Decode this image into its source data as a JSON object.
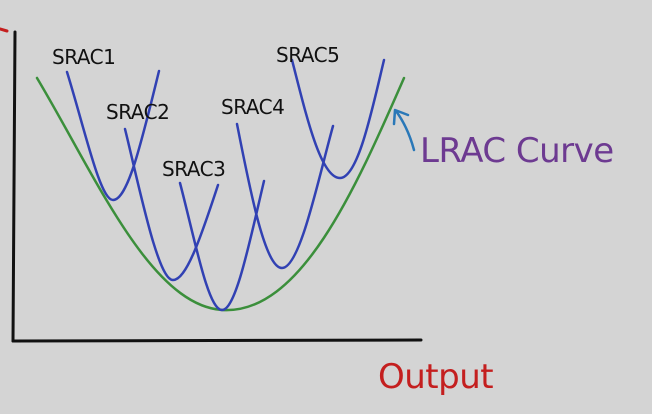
{
  "labels": {
    "srac1": "SRAC1",
    "srac2": "SRAC2",
    "srac3": "SRAC3",
    "srac4": "SRAC4",
    "srac5": "SRAC5",
    "lrac": "LRAC Curve",
    "output": "Output"
  },
  "colors": {
    "background": "#d4d4d4",
    "axes": "#111111",
    "srac": "#3141b3",
    "lrac_curve": "#3b8f3b",
    "lrac_text": "#6d3a91",
    "output_text": "#c41f1f",
    "arrow": "#2a78b8"
  }
}
